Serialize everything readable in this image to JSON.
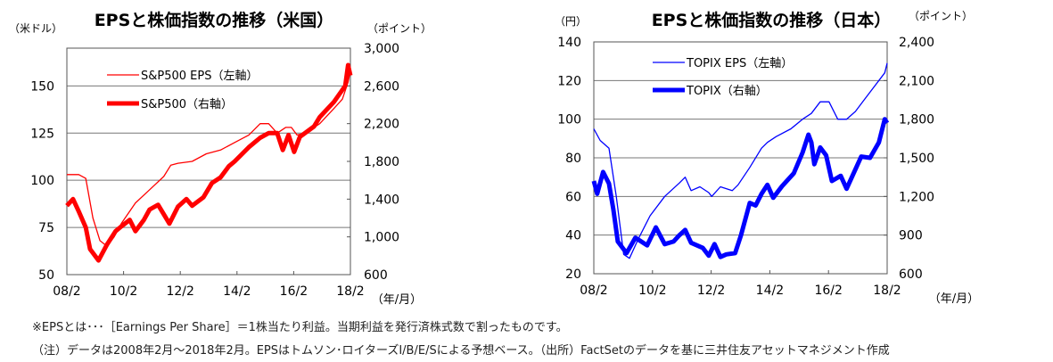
{
  "chart_data": [
    {
      "type": "line",
      "title": "EPSと株価指数の推移（米国）",
      "ylabel_left": "（米ドル）",
      "ylabel_right": "（ポイント）",
      "xlabel": "（年/月）",
      "x_ticks": [
        "08/2",
        "10/2",
        "12/2",
        "14/2",
        "16/2",
        "18/2"
      ],
      "xlim": [
        2008.083,
        2018.083
      ],
      "ylim_left": [
        50,
        170
      ],
      "ylim_right": [
        600,
        3000
      ],
      "yticks_left": [
        "50",
        "75",
        "100",
        "125",
        "150"
      ],
      "yticks_right": [
        "600",
        "1,000",
        "1,400",
        "1,800",
        "2,200",
        "2,600",
        "3,000"
      ],
      "grid": "horizontal at left ticks",
      "legend": "top-left",
      "color": "#ff0000",
      "series": [
        {
          "name": "S&P500 EPS（左軸）",
          "axis": "left",
          "style": "thin",
          "x": [
            2008.083,
            2008.3,
            2008.5,
            2008.75,
            2009.0,
            2009.25,
            2009.5,
            2009.75,
            2010.0,
            2010.5,
            2011.0,
            2011.5,
            2011.75,
            2012.0,
            2012.5,
            2013.0,
            2013.5,
            2014.0,
            2014.5,
            2014.9,
            2015.2,
            2015.5,
            2015.8,
            2016.0,
            2016.2,
            2016.5,
            2017.0,
            2017.5,
            2017.8,
            2018.0,
            2018.083
          ],
          "y": [
            103,
            103,
            103,
            101,
            80,
            68,
            65,
            70,
            77,
            88,
            95,
            102,
            108,
            109,
            110,
            114,
            116,
            120,
            124,
            130,
            130,
            125,
            128,
            128,
            124,
            125,
            130,
            138,
            143,
            152,
            158
          ]
        },
        {
          "name": "S&P500（右軸）",
          "axis": "right",
          "style": "thick",
          "x": [
            2008.083,
            2008.3,
            2008.5,
            2008.75,
            2008.9,
            2009.2,
            2009.5,
            2009.8,
            2010.0,
            2010.3,
            2010.5,
            2010.8,
            2011.0,
            2011.3,
            2011.7,
            2012.0,
            2012.3,
            2012.5,
            2012.9,
            2013.2,
            2013.5,
            2013.8,
            2014.0,
            2014.5,
            2014.9,
            2015.2,
            2015.5,
            2015.7,
            2015.9,
            2016.1,
            2016.3,
            2016.8,
            2017.0,
            2017.5,
            2017.9,
            2018.0,
            2018.083
          ],
          "y": [
            1330,
            1400,
            1270,
            1100,
            870,
            750,
            920,
            1060,
            1110,
            1180,
            1060,
            1180,
            1290,
            1340,
            1140,
            1320,
            1400,
            1330,
            1420,
            1570,
            1630,
            1750,
            1800,
            1950,
            2050,
            2100,
            2100,
            1920,
            2080,
            1900,
            2060,
            2170,
            2270,
            2430,
            2600,
            2820,
            2710
          ]
        }
      ]
    },
    {
      "type": "line",
      "title": "EPSと株価指数の推移（日本）",
      "ylabel_left": "（円）",
      "ylabel_right": "（ポイント）",
      "xlabel": "（年/月）",
      "x_ticks": [
        "08/2",
        "10/2",
        "12/2",
        "14/2",
        "16/2",
        "18/2"
      ],
      "xlim": [
        2008.083,
        2018.083
      ],
      "ylim_left": [
        20,
        140
      ],
      "ylim_right": [
        600,
        2400
      ],
      "yticks_left": [
        "20",
        "40",
        "60",
        "80",
        "100",
        "120",
        "140"
      ],
      "yticks_right": [
        "600",
        "900",
        "1,200",
        "1,500",
        "1,800",
        "2,100",
        "2,400"
      ],
      "grid": "horizontal",
      "legend": "top-left",
      "color": "#0000ff",
      "series": [
        {
          "name": "TOPIX  EPS（左軸）",
          "axis": "left",
          "style": "thin",
          "x": [
            2008.083,
            2008.3,
            2008.6,
            2008.85,
            2009.1,
            2009.3,
            2009.6,
            2010.0,
            2010.5,
            2011.0,
            2011.2,
            2011.4,
            2011.7,
            2012.0,
            2012.1,
            2012.4,
            2012.8,
            2013.0,
            2013.4,
            2013.8,
            2014.0,
            2014.3,
            2014.8,
            2015.2,
            2015.5,
            2015.8,
            2016.1,
            2016.4,
            2016.7,
            2017.0,
            2017.3,
            2017.6,
            2018.0,
            2018.083
          ],
          "y": [
            95,
            89,
            85,
            60,
            30,
            28,
            38,
            50,
            60,
            67,
            70,
            63,
            65,
            62,
            60,
            65,
            63,
            66,
            75,
            85,
            88,
            91,
            95,
            100,
            103,
            109,
            109,
            100,
            100,
            104,
            110,
            116,
            124,
            129
          ]
        },
        {
          "name": "TOPIX（右軸）",
          "axis": "right",
          "style": "thick",
          "x": [
            2008.083,
            2008.2,
            2008.4,
            2008.6,
            2008.75,
            2008.9,
            2009.2,
            2009.5,
            2009.7,
            2009.9,
            2010.2,
            2010.5,
            2010.8,
            2011.0,
            2011.2,
            2011.4,
            2011.8,
            2012.0,
            2012.2,
            2012.4,
            2012.6,
            2012.9,
            2013.1,
            2013.4,
            2013.6,
            2013.8,
            2014.0,
            2014.2,
            2014.5,
            2014.9,
            2015.2,
            2015.4,
            2015.5,
            2015.6,
            2015.8,
            2016.0,
            2016.2,
            2016.5,
            2016.7,
            2016.9,
            2017.2,
            2017.5,
            2017.8,
            2018.0,
            2018.083
          ],
          "y": [
            1320,
            1220,
            1390,
            1300,
            1100,
            850,
            760,
            880,
            850,
            820,
            960,
            830,
            850,
            900,
            940,
            840,
            800,
            740,
            830,
            730,
            750,
            760,
            900,
            1150,
            1130,
            1220,
            1290,
            1190,
            1280,
            1380,
            1540,
            1680,
            1620,
            1450,
            1580,
            1520,
            1320,
            1360,
            1260,
            1360,
            1510,
            1500,
            1620,
            1800,
            1770
          ]
        }
      ]
    }
  ],
  "notes": [
    "※EPSとは･･･［Earnings Per Share］＝1株当たり利益。当期利益を発行済株式数で割ったものです。",
    "（注）データは2008年2月～2018年2月。EPSはトムソン･ロイターズI/B/E/Sによる予想ベース。（出所）FactSetのデータを基に三井住友アセットマネジメント作成"
  ]
}
